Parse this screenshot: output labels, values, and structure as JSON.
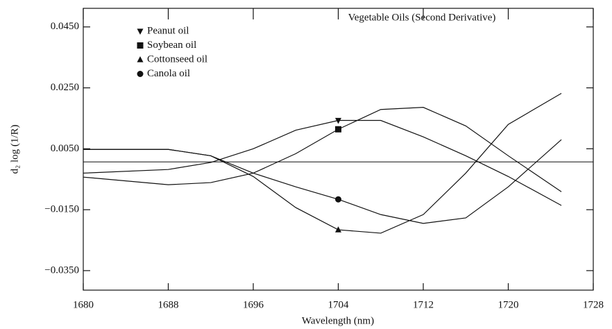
{
  "chart_data": {
    "type": "line",
    "annotation": "Vegetable Oils (Second Derivative)",
    "xlabel": "Wavelength (nm)",
    "ylabel": "d₂ log (1/R)",
    "x": [
      1680,
      1688,
      1692,
      1696,
      1700,
      1704,
      1708,
      1712,
      1716,
      1720,
      1725
    ],
    "marker_x": 1704,
    "hline": 0.0007,
    "series": [
      {
        "name": "Peanut oil",
        "color": "#111111",
        "marker": "triangle-down",
        "values": [
          -0.003,
          -0.0018,
          0.0005,
          0.005,
          0.0111,
          0.0143,
          0.0143,
          0.0089,
          0.0027,
          -0.0041,
          -0.0136
        ]
      },
      {
        "name": "Soybean oil",
        "color": "#111111",
        "marker": "square",
        "values": [
          -0.0043,
          -0.0068,
          -0.0061,
          -0.003,
          0.0034,
          0.0114,
          0.0179,
          0.0186,
          0.0125,
          0.0027,
          -0.0091
        ]
      },
      {
        "name": "Cottonseed oil",
        "color": "#111111",
        "marker": "triangle-up",
        "values": [
          0.0048,
          0.0048,
          0.0027,
          -0.0041,
          -0.0143,
          -0.0216,
          -0.0227,
          -0.0166,
          -0.003,
          0.013,
          0.0232
        ]
      },
      {
        "name": "Canola oil",
        "color": "#111111",
        "marker": "circle",
        "values": [
          0.0048,
          0.0048,
          0.0027,
          -0.003,
          -0.0075,
          -0.0116,
          -0.0166,
          -0.0195,
          -0.0177,
          -0.0075,
          0.008
        ]
      }
    ],
    "xlim": [
      1680,
      1728
    ],
    "xticks": [
      1680,
      1688,
      1696,
      1704,
      1712,
      1720,
      1728
    ],
    "ylim": [
      -0.0414,
      0.0511
    ],
    "yticks": [
      {
        "value": -0.035,
        "label": "−0.0350"
      },
      {
        "value": -0.015,
        "label": "−0.0150"
      },
      {
        "value": 0.005,
        "label": "0.0050"
      },
      {
        "value": 0.025,
        "label": "0.0250"
      },
      {
        "value": 0.045,
        "label": "0.0450"
      }
    ],
    "legend": "upper left"
  }
}
